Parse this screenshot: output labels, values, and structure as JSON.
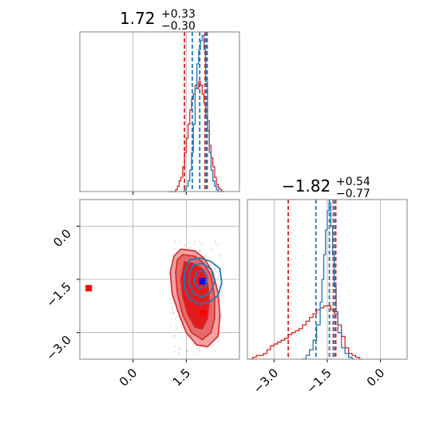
{
  "chart_data": {
    "type": "corner",
    "colors": {
      "red": "#d62728",
      "blue": "#1f77b4",
      "grid": "#b0b0b0",
      "fill_light": "#f1a3a3",
      "fill_mid": "#e66a6a",
      "fill_dark": "#e31a1c",
      "truth_blue": "#0000ff",
      "truth_red": "#ff0000"
    },
    "parameters": [
      {
        "title_value": "1.72",
        "title_plus": "+0.33",
        "title_minus": "−0.30",
        "range": [
          -1.5,
          3.0
        ],
        "ticks": [
          0.0,
          1.5
        ],
        "tick_labels": [
          "0.0",
          "1.5"
        ],
        "quantiles_red": [
          1.45,
          2.03,
          2.09
        ],
        "quantiles_blue": [
          1.67,
          1.88,
          2.07
        ]
      },
      {
        "title_value": "−1.82",
        "title_plus": "+0.54",
        "title_minus": "−0.77",
        "range": [
          -3.75,
          0.75
        ],
        "ticks": [
          -3.0,
          -1.5,
          0.0
        ],
        "tick_labels": [
          "−3.0",
          "−1.5",
          "0.0"
        ],
        "quantiles_red": [
          -2.6,
          -1.33,
          -1.26
        ],
        "quantiles_blue": [
          -1.82,
          -1.44,
          -1.28
        ]
      }
    ],
    "hist_red_x": [
      [
        1.0,
        0
      ],
      [
        1.1,
        0
      ],
      [
        1.2,
        1
      ],
      [
        1.25,
        3
      ],
      [
        1.3,
        6
      ],
      [
        1.35,
        8
      ],
      [
        1.4,
        14
      ],
      [
        1.45,
        22
      ],
      [
        1.5,
        30
      ],
      [
        1.55,
        38
      ],
      [
        1.6,
        46
      ],
      [
        1.65,
        52
      ],
      [
        1.7,
        55
      ],
      [
        1.75,
        60
      ],
      [
        1.8,
        58
      ],
      [
        1.85,
        62
      ],
      [
        1.9,
        60
      ],
      [
        1.95,
        55
      ],
      [
        2.0,
        50
      ],
      [
        2.05,
        42
      ],
      [
        2.1,
        34
      ],
      [
        2.15,
        26
      ],
      [
        2.2,
        19
      ],
      [
        2.25,
        14
      ],
      [
        2.3,
        8
      ],
      [
        2.35,
        4
      ],
      [
        2.4,
        2
      ],
      [
        2.45,
        1
      ],
      [
        2.5,
        0
      ]
    ],
    "hist_blue_x": [
      [
        1.4,
        0
      ],
      [
        1.45,
        1
      ],
      [
        1.5,
        3
      ],
      [
        1.55,
        6
      ],
      [
        1.6,
        12
      ],
      [
        1.65,
        22
      ],
      [
        1.7,
        38
      ],
      [
        1.75,
        58
      ],
      [
        1.8,
        72
      ],
      [
        1.85,
        80
      ],
      [
        1.9,
        85
      ],
      [
        1.95,
        88
      ],
      [
        2.0,
        80
      ],
      [
        2.05,
        62
      ],
      [
        2.1,
        40
      ],
      [
        2.15,
        22
      ],
      [
        2.2,
        12
      ],
      [
        2.25,
        6
      ],
      [
        2.3,
        3
      ],
      [
        2.35,
        1
      ],
      [
        2.4,
        0
      ]
    ],
    "hist_red_y": [
      [
        -3.7,
        0
      ],
      [
        -3.6,
        1
      ],
      [
        -3.5,
        2
      ],
      [
        -3.4,
        2
      ],
      [
        -3.3,
        3
      ],
      [
        -3.2,
        5
      ],
      [
        -3.1,
        7
      ],
      [
        -3.0,
        8
      ],
      [
        -2.9,
        9
      ],
      [
        -2.8,
        10
      ],
      [
        -2.7,
        11
      ],
      [
        -2.6,
        13
      ],
      [
        -2.5,
        14
      ],
      [
        -2.4,
        15
      ],
      [
        -2.3,
        16
      ],
      [
        -2.2,
        18
      ],
      [
        -2.1,
        20
      ],
      [
        -2.0,
        22
      ],
      [
        -1.9,
        24
      ],
      [
        -1.8,
        26
      ],
      [
        -1.7,
        27
      ],
      [
        -1.6,
        28
      ],
      [
        -1.5,
        28
      ],
      [
        -1.4,
        26
      ],
      [
        -1.3,
        24
      ],
      [
        -1.2,
        18
      ],
      [
        -1.1,
        12
      ],
      [
        -1.0,
        6
      ],
      [
        -0.9,
        3
      ],
      [
        -0.8,
        2
      ],
      [
        -0.7,
        1
      ],
      [
        -0.6,
        0
      ]
    ],
    "hist_blue_y": [
      [
        -2.2,
        0
      ],
      [
        -2.1,
        2
      ],
      [
        -2.0,
        5
      ],
      [
        -1.9,
        10
      ],
      [
        -1.8,
        18
      ],
      [
        -1.7,
        30
      ],
      [
        -1.65,
        42
      ],
      [
        -1.6,
        55
      ],
      [
        -1.55,
        68
      ],
      [
        -1.5,
        78
      ],
      [
        -1.45,
        82
      ],
      [
        -1.4,
        70
      ],
      [
        -1.35,
        55
      ],
      [
        -1.3,
        38
      ],
      [
        -1.25,
        25
      ],
      [
        -1.2,
        14
      ],
      [
        -1.1,
        6
      ],
      [
        -1.0,
        3
      ],
      [
        -0.9,
        1
      ],
      [
        -0.8,
        0
      ]
    ],
    "contours_red": [
      [
        [
          1.35,
          -0.65
        ],
        [
          1.75,
          -0.7
        ],
        [
          2.0,
          -0.9
        ],
        [
          2.25,
          -1.3
        ],
        [
          2.4,
          -1.9
        ],
        [
          2.45,
          -2.5
        ],
        [
          2.4,
          -3.1
        ],
        [
          2.1,
          -3.4
        ],
        [
          1.8,
          -3.35
        ],
        [
          1.5,
          -3.0
        ],
        [
          1.3,
          -2.5
        ],
        [
          1.1,
          -1.9
        ],
        [
          1.05,
          -1.3
        ],
        [
          1.15,
          -0.85
        ]
      ],
      [
        [
          1.4,
          -0.8
        ],
        [
          1.75,
          -0.85
        ],
        [
          2.0,
          -1.05
        ],
        [
          2.2,
          -1.4
        ],
        [
          2.3,
          -2.0
        ],
        [
          2.3,
          -2.6
        ],
        [
          2.2,
          -3.0
        ],
        [
          1.95,
          -3.2
        ],
        [
          1.65,
          -3.0
        ],
        [
          1.4,
          -2.5
        ],
        [
          1.25,
          -1.9
        ],
        [
          1.2,
          -1.3
        ],
        [
          1.25,
          -0.95
        ]
      ],
      [
        [
          1.45,
          -1.0
        ],
        [
          1.7,
          -1.05
        ],
        [
          1.95,
          -1.2
        ],
        [
          2.1,
          -1.6
        ],
        [
          2.15,
          -2.1
        ],
        [
          2.1,
          -2.6
        ],
        [
          1.95,
          -2.9
        ],
        [
          1.75,
          -2.85
        ],
        [
          1.55,
          -2.5
        ],
        [
          1.4,
          -2.0
        ],
        [
          1.35,
          -1.5
        ]
      ]
    ],
    "contours_blue": [
      [
        [
          1.6,
          -0.95
        ],
        [
          1.9,
          -0.9
        ],
        [
          2.2,
          -1.0
        ],
        [
          2.45,
          -1.2
        ],
        [
          2.5,
          -1.6
        ],
        [
          2.4,
          -1.95
        ],
        [
          2.15,
          -2.15
        ],
        [
          1.85,
          -2.2
        ],
        [
          1.6,
          -2.05
        ],
        [
          1.45,
          -1.75
        ],
        [
          1.45,
          -1.3
        ]
      ],
      [
        [
          1.7,
          -1.1
        ],
        [
          1.95,
          -1.05
        ],
        [
          2.2,
          -1.2
        ],
        [
          2.3,
          -1.55
        ],
        [
          2.2,
          -1.85
        ],
        [
          1.95,
          -2.0
        ],
        [
          1.7,
          -1.9
        ],
        [
          1.58,
          -1.6
        ],
        [
          1.6,
          -1.3
        ]
      ],
      [
        [
          1.8,
          -1.3
        ],
        [
          2.0,
          -1.25
        ],
        [
          2.1,
          -1.45
        ],
        [
          2.05,
          -1.7
        ],
        [
          1.85,
          -1.75
        ],
        [
          1.72,
          -1.55
        ]
      ]
    ],
    "truth_points": [
      {
        "x": -1.25,
        "y": -1.75,
        "color": "truth_red"
      },
      {
        "x": 1.95,
        "y": -1.55,
        "color": "truth_blue"
      },
      {
        "x": 1.98,
        "y": -2.45,
        "color": "truth_red"
      }
    ]
  }
}
